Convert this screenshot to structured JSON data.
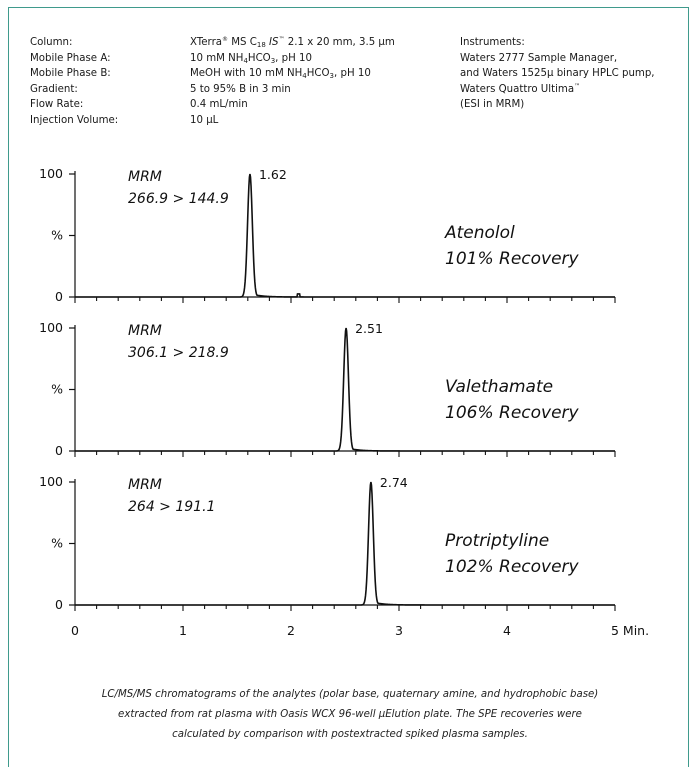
{
  "conditions": {
    "labels": [
      "Column:",
      "Mobile Phase A:",
      "Mobile Phase B:",
      "Gradient:",
      "Flow Rate:",
      "Injection Volume:"
    ],
    "column": {
      "a": "XTerra",
      "reg": "®",
      "b": " MS C",
      "sub": "18",
      "c": " ",
      "is": "IS",
      "tm": "™",
      "d": " 2.1 x 20 mm, 3.5 µm"
    },
    "mobile_a": {
      "a": "10 mM NH",
      "sub": "4",
      "b": "HCO",
      "sub2": "3",
      "c": ", pH 10"
    },
    "mobile_b": {
      "a": "MeOH with 10 mM NH",
      "sub": "4",
      "b": "HCO",
      "sub2": "3",
      "c": ", pH 10"
    },
    "gradient": "5 to 95% B in 3 min",
    "flow_rate": "0.4 mL/min",
    "injection_volume": "10 µL",
    "instruments": {
      "heading": "Instruments:",
      "line1": "Waters 2777 Sample Manager,",
      "line2": "and Waters 1525µ binary HPLC pump,",
      "line3a": "Waters Quattro Ultima",
      "line3tm": "™",
      "line4": "(ESI in MRM)"
    }
  },
  "chart_data": {
    "type": "line",
    "xlim": [
      0,
      5
    ],
    "x_ticks": [
      "0",
      "1",
      "2",
      "3",
      "4",
      "5 Min."
    ],
    "y_ticks": [
      "0",
      "%",
      "100"
    ],
    "ylim": [
      0,
      100
    ],
    "panels": [
      {
        "mrm_label": "MRM",
        "transition": "266.9 > 144.9",
        "peak_label": "1.62",
        "peak_time": 1.62,
        "compound": "Atenolol",
        "recovery": "101% Recovery"
      },
      {
        "mrm_label": "MRM",
        "transition": "306.1 > 218.9",
        "peak_label": "2.51",
        "peak_time": 2.51,
        "compound": "Valethamate",
        "recovery": "106% Recovery"
      },
      {
        "mrm_label": "MRM",
        "transition": "264 > 191.1",
        "peak_label": "2.74",
        "peak_time": 2.74,
        "compound": "Protriptyline",
        "recovery": "102% Recovery"
      }
    ]
  },
  "caption": {
    "line1": "LC/MS/MS chromatograms of the analytes (polar base, quaternary amine, and hydrophobic base)",
    "line2": "extracted from rat plasma with Oasis WCX 96-well µElution plate. The SPE recoveries were",
    "line3": "calculated by comparison with postextracted spiked plasma samples."
  }
}
